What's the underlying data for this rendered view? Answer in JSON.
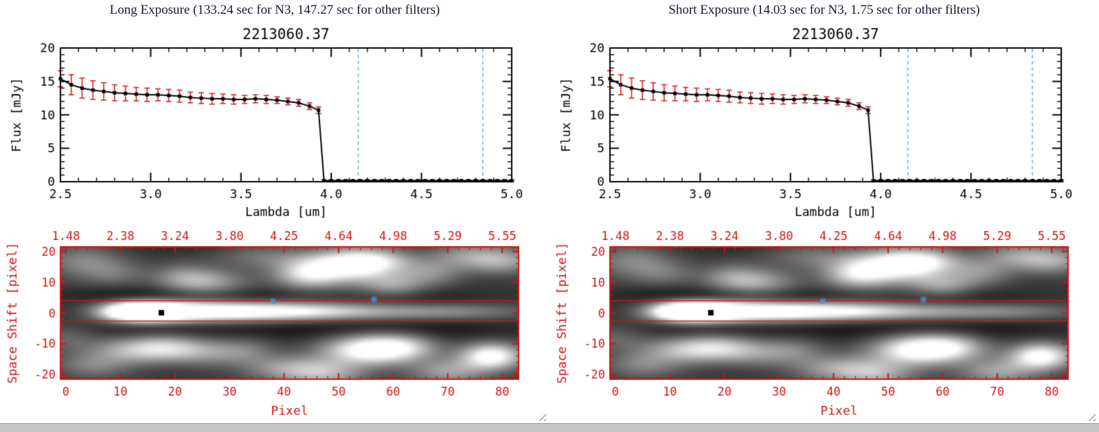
{
  "colors": {
    "background": "#ffffff",
    "panel_title": "#161633",
    "axis_black": "#000000",
    "axis_red": "#d01414",
    "error_red": "#d42020",
    "dashed_blue": "#6fb0ea",
    "star_blue": "#4a8fd8",
    "statusbar_gray": "#c6c6c6"
  },
  "panels": [
    {
      "id": "long",
      "title": "Long Exposure (133.24 sec for N3, 147.27 sec for other filters)"
    },
    {
      "id": "short",
      "title": "Short Exposure (14.03 sec for N3, 1.75 sec for other filters)"
    }
  ],
  "chart_data": [
    {
      "type": "line",
      "appears_in_panels": [
        "long",
        "short"
      ],
      "title": "2213060.37",
      "xlabel": "Lambda [um]",
      "ylabel": "Flux [mJy]",
      "xlim": [
        2.5,
        5.0
      ],
      "ylim": [
        0,
        20
      ],
      "xticks": [
        2.5,
        3.0,
        3.5,
        4.0,
        4.5,
        5.0
      ],
      "xtick_labels": [
        "2.5",
        "3.0",
        "3.5",
        "4.0",
        "4.5",
        "5.0"
      ],
      "yticks": [
        0,
        5,
        10,
        15,
        20
      ],
      "ytick_labels": [
        "0",
        "5",
        "10",
        "15",
        "20"
      ],
      "marker": "filled-square",
      "line_color": "#000000",
      "error_color": "#d42020",
      "vline_color": "#6fb0ea",
      "vlines_dashed_x": [
        4.15,
        4.84
      ],
      "series": [
        {
          "name": "flux",
          "x": [
            2.5,
            2.56,
            2.62,
            2.68,
            2.74,
            2.8,
            2.86,
            2.92,
            2.98,
            3.04,
            3.1,
            3.16,
            3.22,
            3.28,
            3.34,
            3.4,
            3.46,
            3.52,
            3.58,
            3.64,
            3.7,
            3.76,
            3.82,
            3.88,
            3.93,
            3.96,
            4.0,
            4.04,
            4.08,
            4.12,
            4.16,
            4.2,
            4.24,
            4.28,
            4.32,
            4.36,
            4.4,
            4.44,
            4.48,
            4.52,
            4.56,
            4.6,
            4.64,
            4.68,
            4.72,
            4.76,
            4.8,
            4.84,
            4.88,
            4.92,
            4.96,
            5.0
          ],
          "y": [
            15.4,
            14.5,
            14.0,
            13.7,
            13.5,
            13.3,
            13.2,
            13.1,
            13.0,
            13.0,
            12.9,
            12.8,
            12.6,
            12.5,
            12.4,
            12.4,
            12.3,
            12.3,
            12.4,
            12.3,
            12.2,
            12.0,
            11.8,
            11.3,
            10.7,
            0.15,
            0.15,
            0.15,
            0.15,
            0.15,
            0.15,
            0.15,
            0.15,
            0.15,
            0.15,
            0.15,
            0.15,
            0.15,
            0.15,
            0.15,
            0.15,
            0.15,
            0.15,
            0.15,
            0.15,
            0.15,
            0.15,
            0.15,
            0.15,
            0.15,
            0.15,
            0.15
          ],
          "yerr": [
            1.2,
            1.5,
            1.5,
            1.4,
            1.3,
            1.2,
            1.1,
            1.0,
            1.0,
            0.9,
            0.9,
            0.9,
            0.8,
            0.8,
            0.8,
            0.7,
            0.7,
            0.6,
            0.6,
            0.6,
            0.5,
            0.5,
            0.5,
            0.5,
            0.5,
            0.12,
            0.12,
            0.12,
            0.12,
            0.12,
            0.12,
            0.12,
            0.12,
            0.12,
            0.12,
            0.12,
            0.12,
            0.12,
            0.12,
            0.12,
            0.12,
            0.12,
            0.12,
            0.12,
            0.12,
            0.12,
            0.12,
            0.12,
            0.12,
            0.12,
            0.12,
            0.12
          ]
        }
      ]
    },
    {
      "type": "heatmap",
      "appears_in_panels": [
        "long",
        "short"
      ],
      "xlabel": "Pixel",
      "ylabel": "Space Shift [pixel]",
      "xlim": [
        -1,
        83
      ],
      "ylim": [
        -21.5,
        21.5
      ],
      "xticks": [
        0,
        10,
        20,
        30,
        40,
        50,
        60,
        70,
        80
      ],
      "xtick_labels": [
        "0",
        "10",
        "20",
        "30",
        "40",
        "50",
        "60",
        "70",
        "80"
      ],
      "yticks": [
        -20,
        -10,
        0,
        10,
        20
      ],
      "ytick_labels": [
        "-20",
        "-10",
        "0",
        "10",
        "20"
      ],
      "top_axis_labels": [
        "1.48",
        "2.38",
        "3.24",
        "3.80",
        "4.25",
        "4.64",
        "4.98",
        "5.29",
        "5.55"
      ],
      "top_axis_positions": [
        0,
        10,
        20,
        30,
        40,
        50,
        60,
        70,
        80
      ],
      "axis_color": "#d01414",
      "aperture_lines_y": [
        4.0,
        -2.6
      ],
      "square_marker": {
        "x": 17.5,
        "y": 0.1
      },
      "star_markers": [
        {
          "x": 38,
          "y": 3.9
        },
        {
          "x": 56.5,
          "y": 4.4
        }
      ],
      "star_color": "#4a8fd8",
      "base_level": 0.22,
      "grayscale_blobs": [
        [
          10,
          0.5,
          4,
          2.2,
          0.5
        ],
        [
          14,
          0.5,
          4,
          2.2,
          0.95
        ],
        [
          18,
          0.5,
          5,
          2.2,
          0.7
        ],
        [
          24,
          0.5,
          6,
          2.2,
          0.55
        ],
        [
          31,
          0.5,
          7,
          2.2,
          0.5
        ],
        [
          39,
          0.5,
          7,
          2.2,
          0.45
        ],
        [
          47,
          0.5,
          7,
          2.0,
          0.33
        ],
        [
          56,
          0.5,
          8,
          2.0,
          0.26
        ],
        [
          66,
          0.5,
          8,
          2.0,
          0.22
        ],
        [
          76,
          0.5,
          8,
          2.0,
          0.2
        ],
        [
          50,
          15,
          7,
          4,
          0.75
        ],
        [
          56,
          17,
          5,
          3,
          0.5
        ],
        [
          44,
          12,
          4,
          3,
          0.35
        ],
        [
          26,
          10,
          5,
          3,
          0.4
        ],
        [
          21,
          12,
          4,
          3,
          0.25
        ],
        [
          60,
          9,
          4,
          2.5,
          0.35
        ],
        [
          67,
          13,
          4,
          3,
          0.3
        ],
        [
          80,
          17,
          5,
          3,
          0.42
        ],
        [
          73,
          19,
          5,
          3,
          0.3
        ],
        [
          3,
          17,
          5,
          4,
          0.3
        ],
        [
          9,
          13,
          4,
          3,
          0.2
        ],
        [
          35,
          19,
          6,
          3,
          0.22
        ],
        [
          55,
          -12,
          6,
          3.5,
          0.75
        ],
        [
          61,
          -11,
          5,
          3,
          0.5
        ],
        [
          78,
          -14,
          4,
          3,
          0.85
        ],
        [
          70,
          -19,
          5,
          3,
          0.4
        ],
        [
          41,
          -18,
          6,
          3,
          0.4
        ],
        [
          48,
          -20,
          5,
          3,
          0.35
        ],
        [
          13,
          -12,
          6,
          3,
          0.45
        ],
        [
          19,
          -11,
          5,
          3,
          0.35
        ],
        [
          5,
          -17,
          5,
          3,
          0.28
        ],
        [
          26,
          -13,
          5,
          3,
          0.28
        ],
        [
          33,
          -12,
          4,
          3,
          0.22
        ],
        [
          0,
          -8,
          4,
          3,
          0.18
        ],
        [
          30,
          5.5,
          12,
          2,
          -0.12
        ],
        [
          10,
          6,
          8,
          2,
          -0.1
        ],
        [
          45,
          -5,
          15,
          3,
          -0.13
        ],
        [
          15,
          -5.5,
          10,
          2,
          -0.1
        ],
        [
          65,
          4,
          10,
          3,
          -0.1
        ],
        [
          70,
          -5,
          12,
          3,
          -0.09
        ],
        [
          40,
          21,
          25,
          2,
          -0.06
        ]
      ]
    }
  ]
}
